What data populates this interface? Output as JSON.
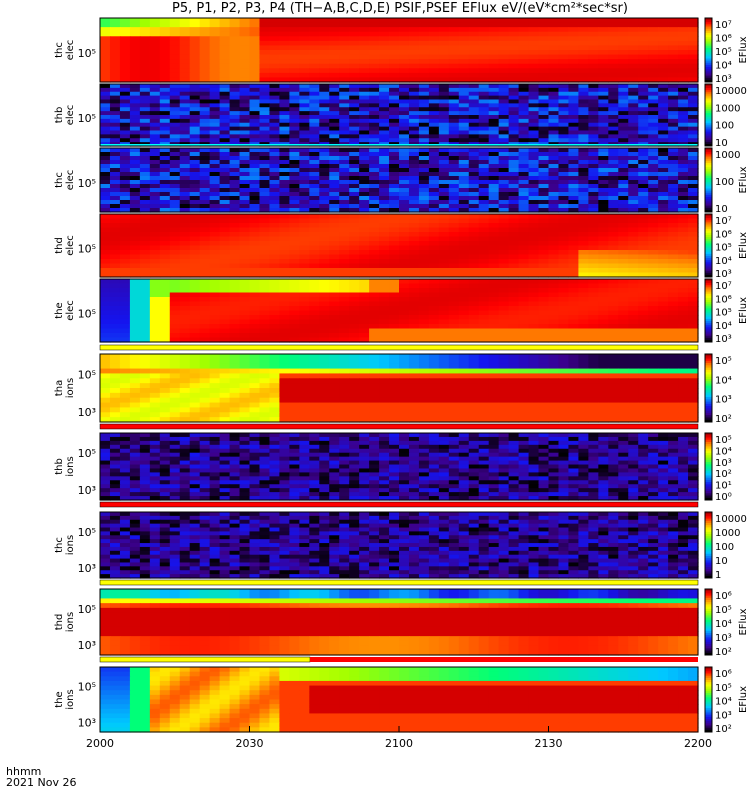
{
  "title": "P5, P1, P2, P3, P4 (TH−A,B,C,D,E) PSIF,PSEF EFlux eV/(eV*cm²*sec*sr)",
  "footer": {
    "format": "hhmm",
    "date": "2021 Nov 26"
  },
  "chart_data": {
    "type": "heatmap",
    "xticks": [
      "2000",
      "2030",
      "2100",
      "2130",
      "2200"
    ],
    "panels": [
      {
        "label": [
          "thc",
          "elec"
        ],
        "yticks": [
          "10⁵"
        ],
        "cbar_label": "EFlux",
        "cbar_ticks": [
          "10⁷",
          "10⁶",
          "10⁵",
          "10⁴",
          "10³"
        ],
        "style": "thc_elec",
        "bar": null
      },
      {
        "label": [
          "thb",
          "elec"
        ],
        "yticks": [
          "10⁵"
        ],
        "cbar_label": "",
        "cbar_ticks": [
          "10000",
          "1000",
          "100",
          "10"
        ],
        "style": "noise_elec",
        "bar": null
      },
      {
        "label": [
          "thc",
          "elec"
        ],
        "yticks": [
          "10⁵"
        ],
        "cbar_label": "EFlux",
        "cbar_ticks": [
          "1000",
          "100",
          "10"
        ],
        "style": "noise_elec",
        "bar": null
      },
      {
        "label": [
          "thd",
          "elec"
        ],
        "yticks": [
          "10⁵"
        ],
        "cbar_label": "EFlux",
        "cbar_ticks": [
          "10⁷",
          "10⁶",
          "10⁵",
          "10⁴",
          "10³"
        ],
        "style": "thd_elec",
        "bar": null
      },
      {
        "label": [
          "the",
          "elec"
        ],
        "yticks": [
          "10⁵"
        ],
        "cbar_label": "EFlux",
        "cbar_ticks": [
          "10⁷",
          "10⁶",
          "10⁵",
          "10⁴",
          "10³"
        ],
        "style": "the_elec",
        "bar": "yellow"
      },
      {
        "label": [
          "tha",
          "ions"
        ],
        "yticks": [
          "10⁵",
          "10³"
        ],
        "cbar_label": "",
        "cbar_ticks": [
          "10⁵",
          "10⁴",
          "10³",
          "10²"
        ],
        "style": "tha_ions",
        "bar": "red"
      },
      {
        "label": [
          "thb",
          "ions"
        ],
        "yticks": [
          "10⁵",
          "10³"
        ],
        "cbar_label": "",
        "cbar_ticks": [
          "10⁵",
          "10⁴",
          "10³",
          "10²",
          "10¹",
          "10⁰"
        ],
        "style": "noise_ions",
        "bar": "red"
      },
      {
        "label": [
          "thc",
          "ions"
        ],
        "yticks": [
          "10⁵",
          "10³"
        ],
        "cbar_label": "",
        "cbar_ticks": [
          "10000",
          "1000",
          "100",
          "10",
          "1"
        ],
        "style": "noise_ions",
        "bar": "yellow"
      },
      {
        "label": [
          "thd",
          "ions"
        ],
        "yticks": [
          "10⁵",
          "10³"
        ],
        "cbar_label": "EFlux",
        "cbar_ticks": [
          "10⁶",
          "10⁵",
          "10⁴",
          "10³",
          "10²"
        ],
        "style": "thd_ions",
        "bar": "mixed"
      },
      {
        "label": [
          "the",
          "ions"
        ],
        "yticks": [
          "10⁵",
          "10³"
        ],
        "cbar_label": "EFlux",
        "cbar_ticks": [
          "10⁶",
          "10⁵",
          "10⁴",
          "10³",
          "10²"
        ],
        "style": "the_ions",
        "bar": null
      }
    ],
    "colors": {
      "bar_red": "#ff0000",
      "bar_yellow": "#ffff00",
      "colormap": "rainbow"
    }
  }
}
